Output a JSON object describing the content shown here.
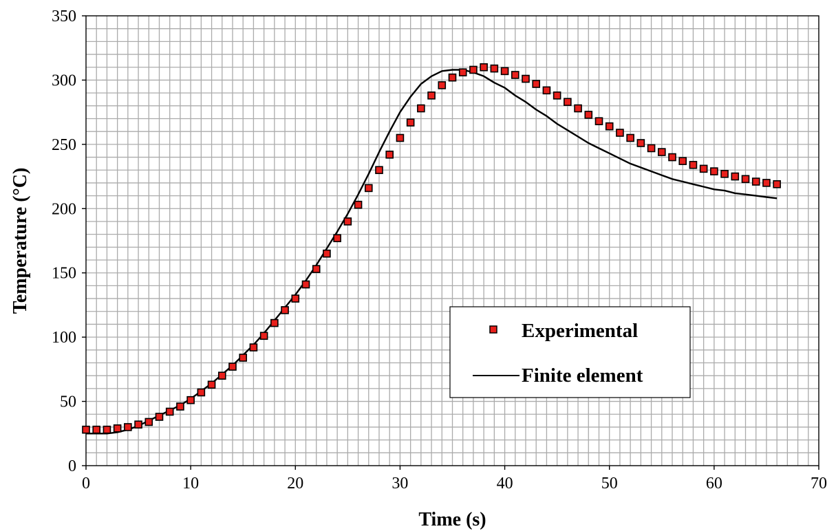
{
  "chart_data": {
    "type": "line",
    "xlabel": "Time (s)",
    "ylabel": "Temperature  (°C)",
    "xlim": [
      0,
      70
    ],
    "ylim": [
      0,
      350
    ],
    "xticks": [
      0,
      10,
      20,
      30,
      40,
      50,
      60,
      70
    ],
    "yticks": [
      0,
      50,
      100,
      150,
      200,
      250,
      300,
      350
    ],
    "x_minor_step": 1,
    "y_minor_step": 10,
    "grid": true,
    "legend_position": "center-right",
    "series": [
      {
        "name": "Experimental",
        "style": "markers",
        "marker": "square",
        "color": "#e8201c",
        "edge_color": "#000000",
        "x": [
          0,
          1,
          2,
          3,
          4,
          5,
          6,
          7,
          8,
          9,
          10,
          11,
          12,
          13,
          14,
          15,
          16,
          17,
          18,
          19,
          20,
          21,
          22,
          23,
          24,
          25,
          26,
          27,
          28,
          29,
          30,
          31,
          32,
          33,
          34,
          35,
          36,
          37,
          38,
          39,
          40,
          41,
          42,
          43,
          44,
          45,
          46,
          47,
          48,
          49,
          50,
          51,
          52,
          53,
          54,
          55,
          56,
          57,
          58,
          59,
          60,
          61,
          62,
          63,
          64,
          65,
          66
        ],
        "y": [
          28,
          28,
          28,
          29,
          30,
          32,
          34,
          38,
          42,
          46,
          51,
          57,
          63,
          70,
          77,
          84,
          92,
          101,
          111,
          121,
          130,
          141,
          153,
          165,
          177,
          190,
          203,
          216,
          230,
          242,
          255,
          267,
          278,
          288,
          296,
          302,
          306,
          308,
          310,
          309,
          307,
          304,
          301,
          297,
          292,
          288,
          283,
          278,
          273,
          268,
          264,
          259,
          255,
          251,
          247,
          244,
          240,
          237,
          234,
          231,
          229,
          227,
          225,
          223,
          221,
          220,
          219
        ]
      },
      {
        "name": "Finite element",
        "style": "line",
        "color": "#000000",
        "x": [
          0,
          1,
          2,
          3,
          4,
          5,
          6,
          7,
          8,
          9,
          10,
          11,
          12,
          13,
          14,
          15,
          16,
          17,
          18,
          19,
          20,
          21,
          22,
          23,
          24,
          25,
          26,
          27,
          28,
          29,
          30,
          31,
          32,
          33,
          34,
          35,
          36,
          37,
          38,
          39,
          40,
          41,
          42,
          43,
          44,
          45,
          46,
          47,
          48,
          49,
          50,
          51,
          52,
          53,
          54,
          55,
          56,
          57,
          58,
          59,
          60,
          61,
          62,
          63,
          64,
          65,
          66
        ],
        "y": [
          25,
          25,
          25,
          26,
          28,
          31,
          35,
          39,
          43,
          47,
          52,
          58,
          64,
          71,
          78,
          86,
          94,
          103,
          113,
          123,
          133,
          144,
          156,
          169,
          182,
          196,
          211,
          227,
          244,
          260,
          275,
          287,
          297,
          303,
          307,
          308,
          308,
          306,
          303,
          298,
          294,
          288,
          283,
          277,
          272,
          266,
          261,
          256,
          251,
          247,
          243,
          239,
          235,
          232,
          229,
          226,
          223,
          221,
          219,
          217,
          215,
          214,
          212,
          211,
          210,
          209,
          208
        ]
      }
    ]
  }
}
